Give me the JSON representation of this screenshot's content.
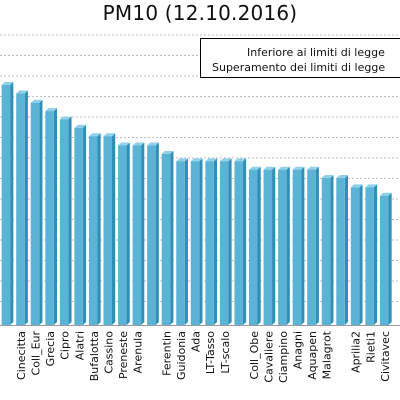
{
  "chart_data": {
    "type": "bar",
    "title": "PM10 (12.10.2016)",
    "xlabel": "",
    "ylabel": "",
    "ylim": [
      0,
      30
    ],
    "grid": true,
    "legend": {
      "placement": "top-right",
      "entries": [
        "Inferiore ai limiti di legge",
        "Superamento dei limiti di legge"
      ]
    },
    "categories": [
      "",
      "Cinecitta",
      "Coll_Eur",
      "Grecia",
      "Cipro",
      "Alatri",
      "Bufalotta",
      "Cassino",
      "Preneste",
      "Arenula",
      "",
      "Ferentin",
      "Guidonia",
      "Ada",
      "LT-Tasso",
      "LT-scalo",
      "",
      "Coll_Obe",
      "Cavaliere",
      "Ciampino",
      "Anagni",
      "Aquapen",
      "Malagrot",
      "",
      "Aprilia2",
      "Rieti1",
      "Civitavec"
    ],
    "values": [
      25.8,
      24.9,
      23.9,
      23.0,
      22.1,
      21.2,
      20.3,
      20.3,
      19.3,
      19.3,
      19.3,
      18.4,
      17.6,
      17.6,
      17.6,
      17.6,
      17.6,
      16.7,
      16.7,
      16.7,
      16.7,
      16.7,
      15.8,
      15.8,
      14.8,
      14.8,
      13.9
    ],
    "bar_color": "#5bb3d6",
    "bar_side_color": "#2f8fb6"
  }
}
